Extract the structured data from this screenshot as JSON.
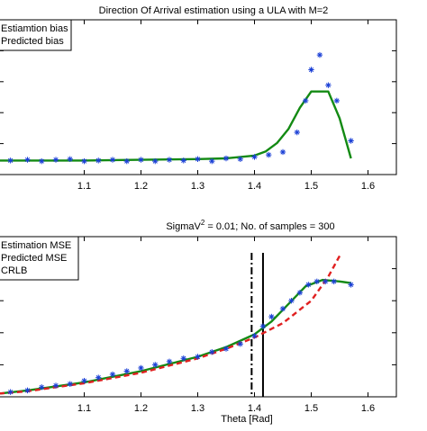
{
  "chart_data": [
    {
      "type": "line",
      "title": "Direction Of Arrival estimation using a ULA with M=2",
      "xlabel": "",
      "ylabel": "",
      "xlim": [
        0.95,
        1.65
      ],
      "ylim": [
        -0.02,
        0.2
      ],
      "xticks": [
        "1.1",
        "1.2",
        "1.3",
        "1.4",
        "1.5",
        "1.6"
      ],
      "legend": {
        "position": "top-left",
        "entries": [
          "Estiamtion bias",
          "Predicted bias"
        ]
      },
      "grid": false,
      "colors": {
        "estimate": "#1a3fd6",
        "predicted": "#138a13"
      },
      "series": [
        {
          "name": "Estiamtion bias",
          "style": "markers",
          "x": [
            0.97,
            1.0,
            1.025,
            1.05,
            1.075,
            1.1,
            1.125,
            1.15,
            1.175,
            1.2,
            1.225,
            1.25,
            1.275,
            1.3,
            1.325,
            1.35,
            1.375,
            1.4,
            1.425,
            1.45,
            1.475,
            1.49,
            1.5,
            1.515,
            1.53,
            1.545,
            1.57
          ],
          "values": [
            0.0,
            0.001,
            -0.001,
            0.001,
            0.002,
            -0.001,
            0.0,
            0.001,
            -0.001,
            0.001,
            -0.001,
            0.001,
            0.0,
            0.002,
            -0.001,
            0.003,
            0.002,
            0.005,
            0.008,
            0.012,
            0.04,
            0.085,
            0.129,
            0.15,
            0.107,
            0.085,
            0.028
          ]
        },
        {
          "name": "Predicted bias",
          "style": "line",
          "x": [
            0.95,
            1.0,
            1.1,
            1.2,
            1.3,
            1.35,
            1.4,
            1.42,
            1.44,
            1.46,
            1.48,
            1.5,
            1.53,
            1.55,
            1.57
          ],
          "values": [
            0.0,
            0.0,
            0.0,
            0.001,
            0.002,
            0.003,
            0.007,
            0.013,
            0.025,
            0.045,
            0.075,
            0.098,
            0.098,
            0.06,
            0.003
          ]
        }
      ]
    },
    {
      "type": "line",
      "title": "SigmaV² = 0.01; No. of samples = 300",
      "xlabel": "Theta [Rad]",
      "ylabel": "",
      "xlim": [
        0.95,
        1.65
      ],
      "ylim": [
        0,
        1
      ],
      "xticks": [
        "1.1",
        "1.2",
        "1.3",
        "1.4",
        "1.5",
        "1.6"
      ],
      "legend": {
        "position": "top-left",
        "entries": [
          "Estimation MSE",
          "Predicted MSE",
          "CRLB"
        ]
      },
      "grid": false,
      "vertical_lines": [
        {
          "x": 1.395,
          "style": "dash-dot"
        },
        {
          "x": 1.415,
          "style": "solid"
        }
      ],
      "colors": {
        "estimate": "#1a3fd6",
        "predicted": "#138a13",
        "crlb": "#e02020",
        "vlines": "#000000"
      },
      "series": [
        {
          "name": "Estimation MSE",
          "style": "markers",
          "x": [
            0.97,
            1.0,
            1.025,
            1.05,
            1.075,
            1.1,
            1.125,
            1.15,
            1.175,
            1.2,
            1.225,
            1.25,
            1.275,
            1.3,
            1.325,
            1.35,
            1.375,
            1.4,
            1.415,
            1.43,
            1.45,
            1.465,
            1.48,
            1.495,
            1.51,
            1.525,
            1.54,
            1.57
          ],
          "values": [
            0.03,
            0.04,
            0.06,
            0.07,
            0.08,
            0.1,
            0.12,
            0.14,
            0.16,
            0.18,
            0.2,
            0.22,
            0.24,
            0.25,
            0.28,
            0.3,
            0.33,
            0.38,
            0.44,
            0.5,
            0.55,
            0.6,
            0.65,
            0.7,
            0.72,
            0.72,
            0.72,
            0.7
          ]
        },
        {
          "name": "Predicted MSE",
          "style": "line",
          "x": [
            0.95,
            1.0,
            1.1,
            1.2,
            1.3,
            1.35,
            1.4,
            1.43,
            1.46,
            1.49,
            1.52,
            1.55,
            1.57
          ],
          "values": [
            0.02,
            0.04,
            0.09,
            0.16,
            0.25,
            0.31,
            0.39,
            0.47,
            0.58,
            0.69,
            0.73,
            0.72,
            0.71
          ]
        },
        {
          "name": "CRLB",
          "style": "dashed",
          "x": [
            0.95,
            1.0,
            1.1,
            1.2,
            1.3,
            1.35,
            1.4,
            1.45,
            1.5,
            1.53,
            1.55
          ],
          "values": [
            0.02,
            0.035,
            0.085,
            0.15,
            0.24,
            0.3,
            0.37,
            0.46,
            0.6,
            0.75,
            0.88
          ]
        }
      ]
    }
  ]
}
